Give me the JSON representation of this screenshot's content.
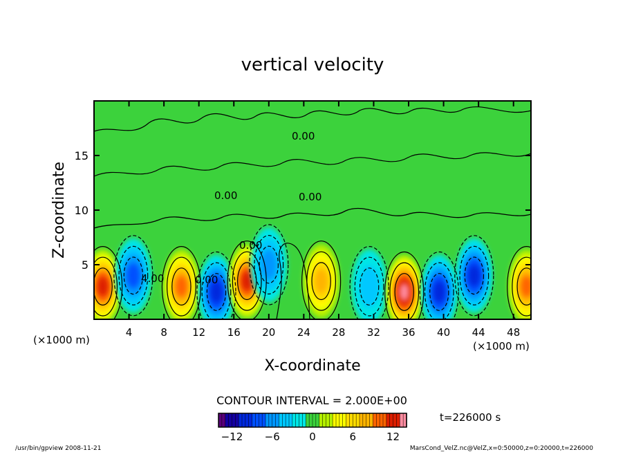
{
  "chart_data": {
    "type": "heatmap",
    "title": "vertical velocity",
    "xlabel": "X-coordinate",
    "ylabel": "Z-coordinate",
    "x_unit_left": "(×1000 m)",
    "x_unit_right": "(×1000 m)",
    "xlim": [
      0,
      50
    ],
    "ylim": [
      0,
      20
    ],
    "x_ticks": [
      4,
      8,
      12,
      16,
      20,
      24,
      28,
      32,
      36,
      40,
      44,
      48
    ],
    "y_ticks": [
      5,
      10,
      15
    ],
    "contour_interval_text": "CONTOUR INTERVAL = 2.000E+00",
    "contour_labels": [
      "0.00",
      "4.00",
      "0.00",
      "0.00",
      "0.00",
      "0.00"
    ],
    "time_text": "t=226000 s",
    "colorbar": {
      "min": -14,
      "max": 14,
      "ticks": [
        -12,
        -6,
        0,
        6,
        12
      ],
      "tick_labels": [
        "−12",
        "−6",
        "0",
        "6",
        "12"
      ]
    },
    "cells": [
      {
        "x": 1,
        "z": 3,
        "value": 12
      },
      {
        "x": 4.5,
        "z": 4,
        "value": -8
      },
      {
        "x": 10,
        "z": 3,
        "value": 10
      },
      {
        "x": 14,
        "z": 2.5,
        "value": -10
      },
      {
        "x": 17.5,
        "z": 3.5,
        "value": 12
      },
      {
        "x": 20,
        "z": 5,
        "value": -6
      },
      {
        "x": 26,
        "z": 3.5,
        "value": 8
      },
      {
        "x": 31.5,
        "z": 3,
        "value": -4
      },
      {
        "x": 35.5,
        "z": 2.5,
        "value": 14
      },
      {
        "x": 39.5,
        "z": 2.5,
        "value": -10
      },
      {
        "x": 43.5,
        "z": 4,
        "value": -10
      },
      {
        "x": 49.5,
        "z": 3,
        "value": 10
      }
    ],
    "colors": {
      "background_field": "#3cd23c",
      "positive": [
        "#b4f000",
        "#ffff00",
        "#ffc000",
        "#ff6400",
        "#dc1e00"
      ],
      "negative": [
        "#00e6e6",
        "#0096ff",
        "#0028dc",
        "#1400a0",
        "#5a007a"
      ]
    }
  },
  "footer": {
    "left": "/usr/bin/gpview  2008-11-21",
    "right": "MarsCond_VelZ.nc@VelZ,x=0:50000,z=0:20000,t=226000"
  }
}
